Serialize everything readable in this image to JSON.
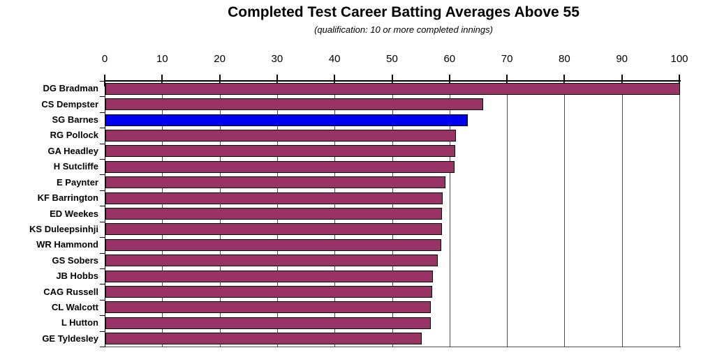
{
  "header": {
    "title": "Completed Test Career Batting Averages Above 55",
    "subtitle": "(qualification: 10 or more completed innings)"
  },
  "chart_data": {
    "type": "bar",
    "orientation": "horizontal",
    "title": "Completed Test Career Batting Averages Above 55",
    "subtitle": "(qualification: 10 or more completed innings)",
    "categories": [
      "DG Bradman",
      "CS Dempster",
      "SG Barnes",
      "RG Pollock",
      "GA Headley",
      "H Sutcliffe",
      "E Paynter",
      "KF Barrington",
      "ED Weekes",
      "KS Duleepsinhji",
      "WR Hammond",
      "GS Sobers",
      "JB Hobbs",
      "CAG Russell",
      "CL Walcott",
      "L Hutton",
      "GE Tyldesley"
    ],
    "values": [
      99.94,
      65.72,
      63.05,
      60.97,
      60.83,
      60.73,
      59.23,
      58.67,
      58.61,
      58.52,
      58.45,
      57.78,
      56.94,
      56.87,
      56.68,
      56.67,
      55.0
    ],
    "highlighted_category": "SG Barnes",
    "xlabel": "",
    "ylabel": "",
    "xlim": [
      0,
      100
    ],
    "tick_step": 10,
    "tick_labels": [
      "0",
      "10",
      "20",
      "30",
      "40",
      "50",
      "60",
      "70",
      "80",
      "90",
      "100"
    ],
    "axis_position": "top",
    "grid": true,
    "legend": "none",
    "colors": {
      "bar": "#993366",
      "highlight_bar": "#0000ee",
      "bar_border": "#000000",
      "gridline": "#4d4d4d",
      "axis": "#000000",
      "text": "#000000",
      "background": "#ffffff"
    }
  }
}
